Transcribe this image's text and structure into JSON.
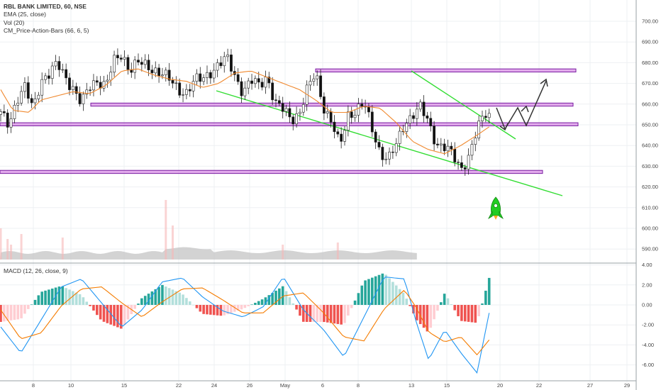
{
  "header": {
    "symbol_line": "RBL BANK LIMITED, 60, NSE",
    "ema_label": "EMA (25, close)",
    "vol_label": "Vol (20)",
    "indicator_label": "CM_Price-Action-Bars (66, 6, 5)",
    "macd_label": "MACD (12, 26, close, 9)"
  },
  "colors": {
    "up_candle": "#ffffff",
    "down_candle": "#111111",
    "wick": "#222222",
    "ema": "#f0892f",
    "zone_fill": "#cc66dd",
    "zone_stroke": "#7a1fa2",
    "trendline": "#33dd33",
    "volume_area": "#c4c4c4",
    "volume_up": "#f6b7b7",
    "macd_hist_up": "#26a69a",
    "macd_hist_up_weak": "#b2dfdb",
    "macd_hist_down": "#ef5350",
    "macd_hist_down_weak": "#ffcdd2",
    "macd_line": "#2196f3",
    "signal_line": "#f57c00",
    "projection": "#333333",
    "rocket": "#22cc22"
  },
  "chart_data": [
    {
      "type": "candlestick",
      "title": "RBL BANK LIMITED, 60, NSE",
      "x_ticks": [
        "8",
        "10",
        "15",
        "22",
        "24",
        "26",
        "May",
        "6",
        "8",
        "13",
        "15",
        "20",
        "22",
        "27",
        "29"
      ],
      "y_ticks": [
        "590.00",
        "600.00",
        "610.00",
        "620.00",
        "630.00",
        "640.00",
        "650.00",
        "660.00",
        "670.00",
        "680.00",
        "690.00",
        "700.00"
      ],
      "ylim": [
        585,
        705
      ],
      "series": [
        {
          "name": "EMA (25, close)",
          "type": "line",
          "x": [
            0,
            3,
            7,
            10,
            14,
            18,
            22,
            26,
            30,
            34,
            38,
            42,
            46,
            50,
            54,
            58,
            62,
            66,
            70,
            74,
            78,
            82,
            86,
            90,
            94,
            98,
            102,
            106,
            110,
            114,
            118,
            121
          ],
          "values": [
            667,
            657,
            656,
            662,
            664,
            666,
            665,
            669,
            676,
            677,
            674,
            672,
            671,
            668,
            670,
            675,
            676,
            673,
            670,
            667,
            662,
            656,
            656,
            659,
            658,
            651,
            642,
            638,
            636,
            640,
            645,
            649
          ]
        },
        {
          "name": "Close",
          "type": "line",
          "x": [
            0,
            2,
            4,
            6,
            8,
            10,
            12,
            14,
            16,
            18,
            20,
            22,
            24,
            26,
            28,
            30,
            32,
            34,
            36,
            38,
            40,
            42,
            44,
            46,
            48,
            50,
            52,
            54,
            56,
            58,
            60,
            62,
            64,
            66,
            68,
            70,
            72,
            74,
            76,
            78,
            80,
            82,
            84,
            86,
            88,
            90,
            92,
            94,
            96,
            98,
            100,
            102,
            104,
            106,
            108,
            110,
            112,
            114,
            116,
            118,
            120,
            121
          ],
          "values": [
            655,
            650,
            663,
            668,
            657,
            672,
            675,
            679,
            673,
            668,
            660,
            668,
            672,
            669,
            680,
            684,
            677,
            680,
            678,
            677,
            675,
            671,
            667,
            666,
            671,
            672,
            676,
            679,
            682,
            674,
            666,
            671,
            669,
            674,
            660,
            657,
            653,
            656,
            667,
            675,
            659,
            651,
            639,
            655,
            657,
            660,
            648,
            637,
            633,
            640,
            651,
            655,
            658,
            651,
            641,
            639,
            635,
            629,
            635,
            647,
            656,
            655
          ]
        }
      ],
      "zones": [
        {
          "from": 675.5,
          "to": 677.0
        },
        {
          "from": 659.0,
          "to": 660.5
        },
        {
          "from": 649.5,
          "to": 651.0
        },
        {
          "from": 626.5,
          "to": 628.0
        }
      ],
      "volume_note": "Vol (20)"
    },
    {
      "type": "bar",
      "title": "MACD (12, 26, close, 9)",
      "y_ticks": [
        "-6.00",
        "-4.00",
        "-2.00",
        "0.00",
        "2.00",
        "4.00"
      ],
      "ylim": [
        -7.2,
        4.2
      ],
      "series": [
        {
          "name": "MACD",
          "type": "line",
          "x": [
            0,
            5,
            10,
            15,
            20,
            25,
            30,
            35,
            40,
            45,
            50,
            55,
            60,
            65,
            70,
            75,
            80,
            85,
            90,
            95,
            100,
            103,
            106,
            110,
            114,
            118,
            121
          ],
          "values": [
            -2.2,
            -4.8,
            -1.5,
            1.8,
            2.6,
            0.2,
            -2.2,
            -0.5,
            2.3,
            2.7,
            0.8,
            -0.6,
            -1.2,
            -0.2,
            2.8,
            -0.5,
            -2.5,
            -5.2,
            -1.2,
            2.8,
            2.6,
            -1.8,
            -5.5,
            -2.5,
            -4.8,
            -6.8,
            -0.8
          ]
        },
        {
          "name": "Signal",
          "type": "line",
          "x": [
            0,
            5,
            10,
            15,
            20,
            25,
            30,
            35,
            40,
            45,
            50,
            55,
            60,
            65,
            70,
            75,
            80,
            85,
            90,
            95,
            100,
            103,
            106,
            110,
            114,
            118,
            121
          ],
          "values": [
            -0.5,
            -3.4,
            -2.8,
            -0.1,
            1.6,
            1.8,
            0.2,
            -1.2,
            0.3,
            1.6,
            1.7,
            0.5,
            -0.8,
            -0.8,
            0.9,
            1.2,
            -0.8,
            -3.2,
            -3.6,
            -0.4,
            1.5,
            -0.3,
            -2.7,
            -3.7,
            -3.2,
            -5.0,
            -3.5
          ]
        }
      ]
    }
  ]
}
